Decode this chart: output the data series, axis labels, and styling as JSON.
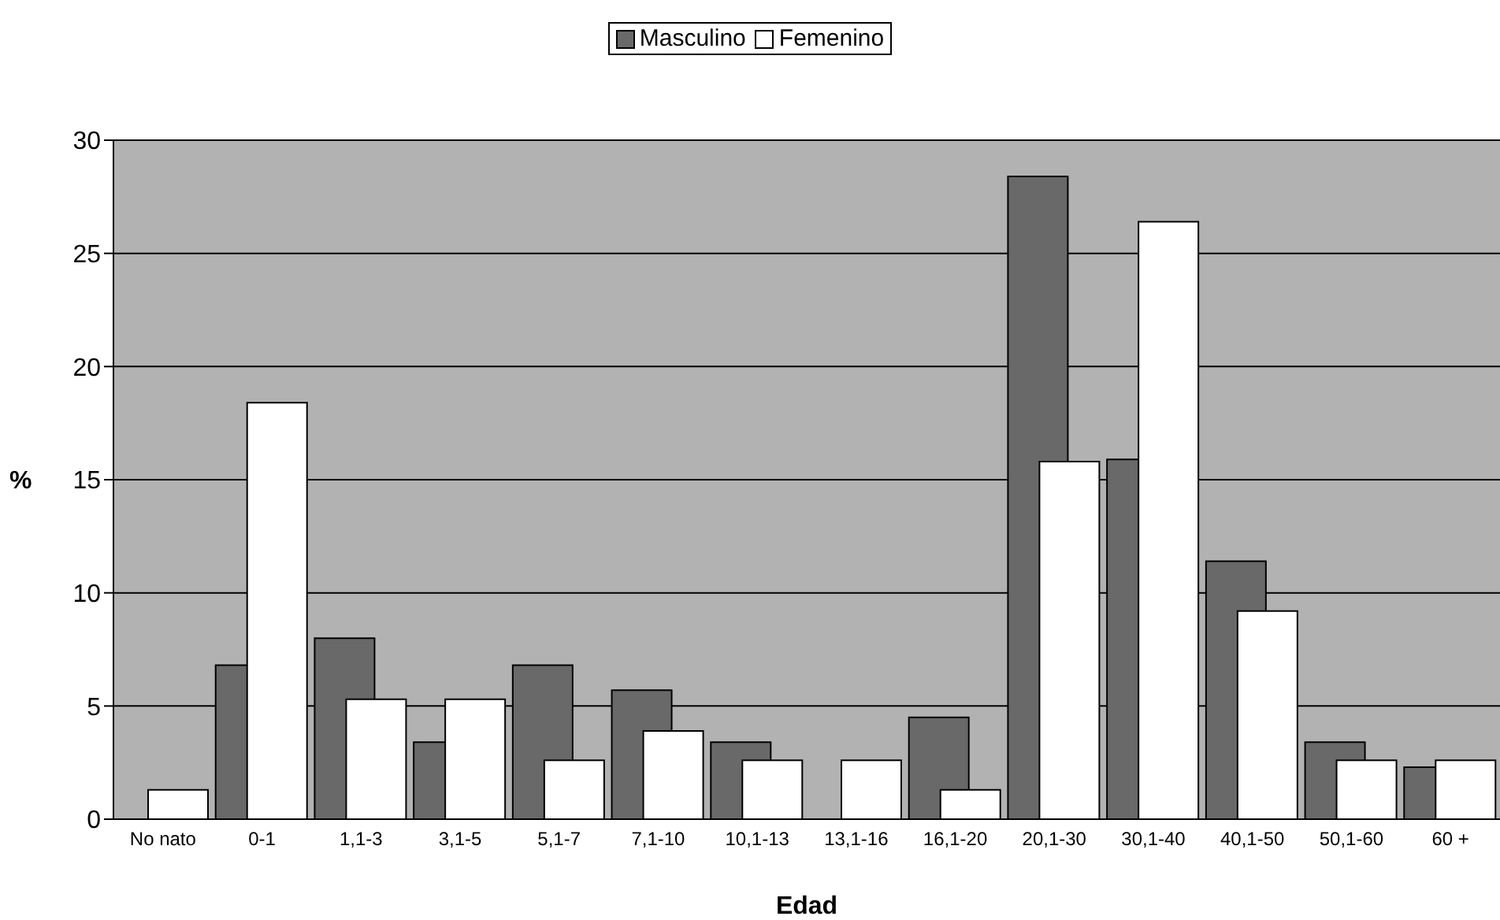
{
  "chart_data": {
    "type": "bar",
    "xlabel": "Edad",
    "ylabel": "%",
    "categories": [
      "No nato",
      "0-1",
      "1,1-3",
      "3,1-5",
      "5,1-7",
      "7,1-10",
      "10,1-13",
      "13,1-16",
      "16,1-20",
      "20,1-30",
      "30,1-40",
      "40,1-50",
      "50,1-60",
      "60 +"
    ],
    "series": [
      {
        "name": "Masculino",
        "color": "#696969",
        "values": [
          0,
          6.8,
          8.0,
          3.4,
          6.8,
          5.7,
          3.4,
          0,
          4.5,
          28.4,
          15.9,
          11.4,
          3.4,
          2.3
        ]
      },
      {
        "name": "Femenino",
        "color": "#ffffff",
        "values": [
          1.3,
          18.4,
          5.3,
          5.3,
          2.6,
          3.9,
          2.6,
          2.6,
          1.3,
          15.8,
          26.4,
          9.2,
          2.6,
          2.6
        ]
      }
    ],
    "ylim": [
      0,
      30
    ],
    "yticks": [
      0,
      5,
      10,
      15,
      20,
      25,
      30
    ],
    "grid": "y",
    "legend": "top"
  }
}
